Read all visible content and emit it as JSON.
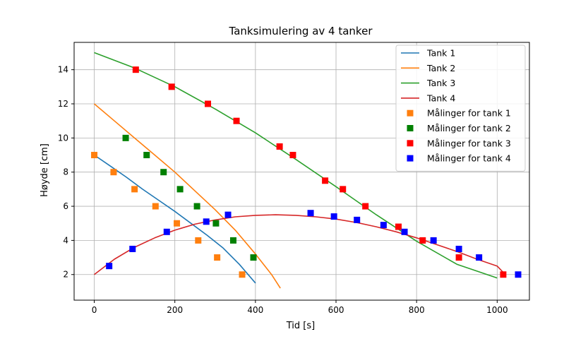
{
  "chart_data": {
    "type": "line",
    "title": "Tanksimulering av 4 tanker",
    "xlabel": "Tid [s]",
    "ylabel": "Høyde [cm]",
    "xlim": [
      -50,
      1080
    ],
    "ylim": [
      0.5,
      15.6
    ],
    "xticks": [
      0,
      200,
      400,
      600,
      800,
      1000
    ],
    "yticks": [
      2,
      4,
      6,
      8,
      10,
      12,
      14
    ],
    "grid": true,
    "legend_position": "top-right",
    "series": [
      {
        "name": "Tank 1",
        "kind": "line",
        "color": "#1f77b4",
        "x": [
          0,
          40,
          80,
          120,
          160,
          200,
          240,
          280,
          320,
          360,
          400
        ],
        "y": [
          9.0,
          8.35,
          7.7,
          7.0,
          6.35,
          5.7,
          5.0,
          4.3,
          3.55,
          2.6,
          1.5
        ]
      },
      {
        "name": "Tank 2",
        "kind": "line",
        "color": "#ff7f0e",
        "x": [
          0,
          50,
          100,
          150,
          200,
          250,
          300,
          350,
          400,
          440,
          462
        ],
        "y": [
          12.0,
          11.0,
          10.0,
          9.0,
          8.0,
          6.9,
          5.8,
          4.6,
          3.2,
          2.0,
          1.2
        ]
      },
      {
        "name": "Tank 3",
        "kind": "line",
        "color": "#2ca02c",
        "x": [
          0,
          100,
          200,
          300,
          400,
          500,
          600,
          700,
          800,
          900,
          1000
        ],
        "y": [
          15.0,
          14.1,
          13.0,
          11.7,
          10.3,
          8.75,
          7.15,
          5.5,
          3.95,
          2.6,
          1.8
        ]
      },
      {
        "name": "Tank 4",
        "kind": "line",
        "color": "#d62728",
        "x": [
          0,
          50,
          100,
          150,
          200,
          250,
          300,
          350,
          400,
          450,
          500,
          550,
          600,
          650,
          700,
          750,
          800,
          850,
          900,
          950,
          1000,
          1020
        ],
        "y": [
          2.0,
          2.9,
          3.6,
          4.15,
          4.6,
          4.95,
          5.2,
          5.38,
          5.47,
          5.5,
          5.47,
          5.38,
          5.25,
          5.05,
          4.8,
          4.5,
          4.15,
          3.75,
          3.35,
          2.9,
          2.5,
          2.0
        ]
      },
      {
        "name": "Målinger for tank 1",
        "kind": "marker",
        "color": "#ff7f0e",
        "x": [
          0,
          48,
          100,
          152,
          205,
          258,
          305,
          367
        ],
        "y": [
          9.0,
          8.0,
          7.0,
          6.0,
          5.0,
          4.0,
          3.0,
          2.0
        ]
      },
      {
        "name": "Målinger for tank 2",
        "kind": "marker",
        "color": "#008000",
        "x": [
          78,
          130,
          172,
          213,
          255,
          302,
          345,
          395
        ],
        "y": [
          10.0,
          9.0,
          8.0,
          7.0,
          6.0,
          5.0,
          4.0,
          3.0
        ]
      },
      {
        "name": "Målinger for tank 3",
        "kind": "marker",
        "color": "#ff0000",
        "x": [
          103,
          192,
          282,
          353,
          460,
          493,
          573,
          617,
          673,
          755,
          815,
          905,
          1015
        ],
        "y": [
          14.0,
          13.0,
          12.0,
          11.0,
          9.5,
          9.0,
          7.5,
          7.0,
          6.0,
          4.8,
          4.0,
          3.0,
          2.0
        ]
      },
      {
        "name": "Målinger for tank 4",
        "kind": "marker",
        "color": "#0000ff",
        "x": [
          37,
          95,
          180,
          278,
          332,
          537,
          595,
          652,
          718,
          770,
          842,
          905,
          955,
          1052
        ],
        "y": [
          2.5,
          3.5,
          4.5,
          5.1,
          5.5,
          5.6,
          5.4,
          5.2,
          4.9,
          4.5,
          4.0,
          3.5,
          3.0,
          2.0
        ]
      }
    ]
  }
}
